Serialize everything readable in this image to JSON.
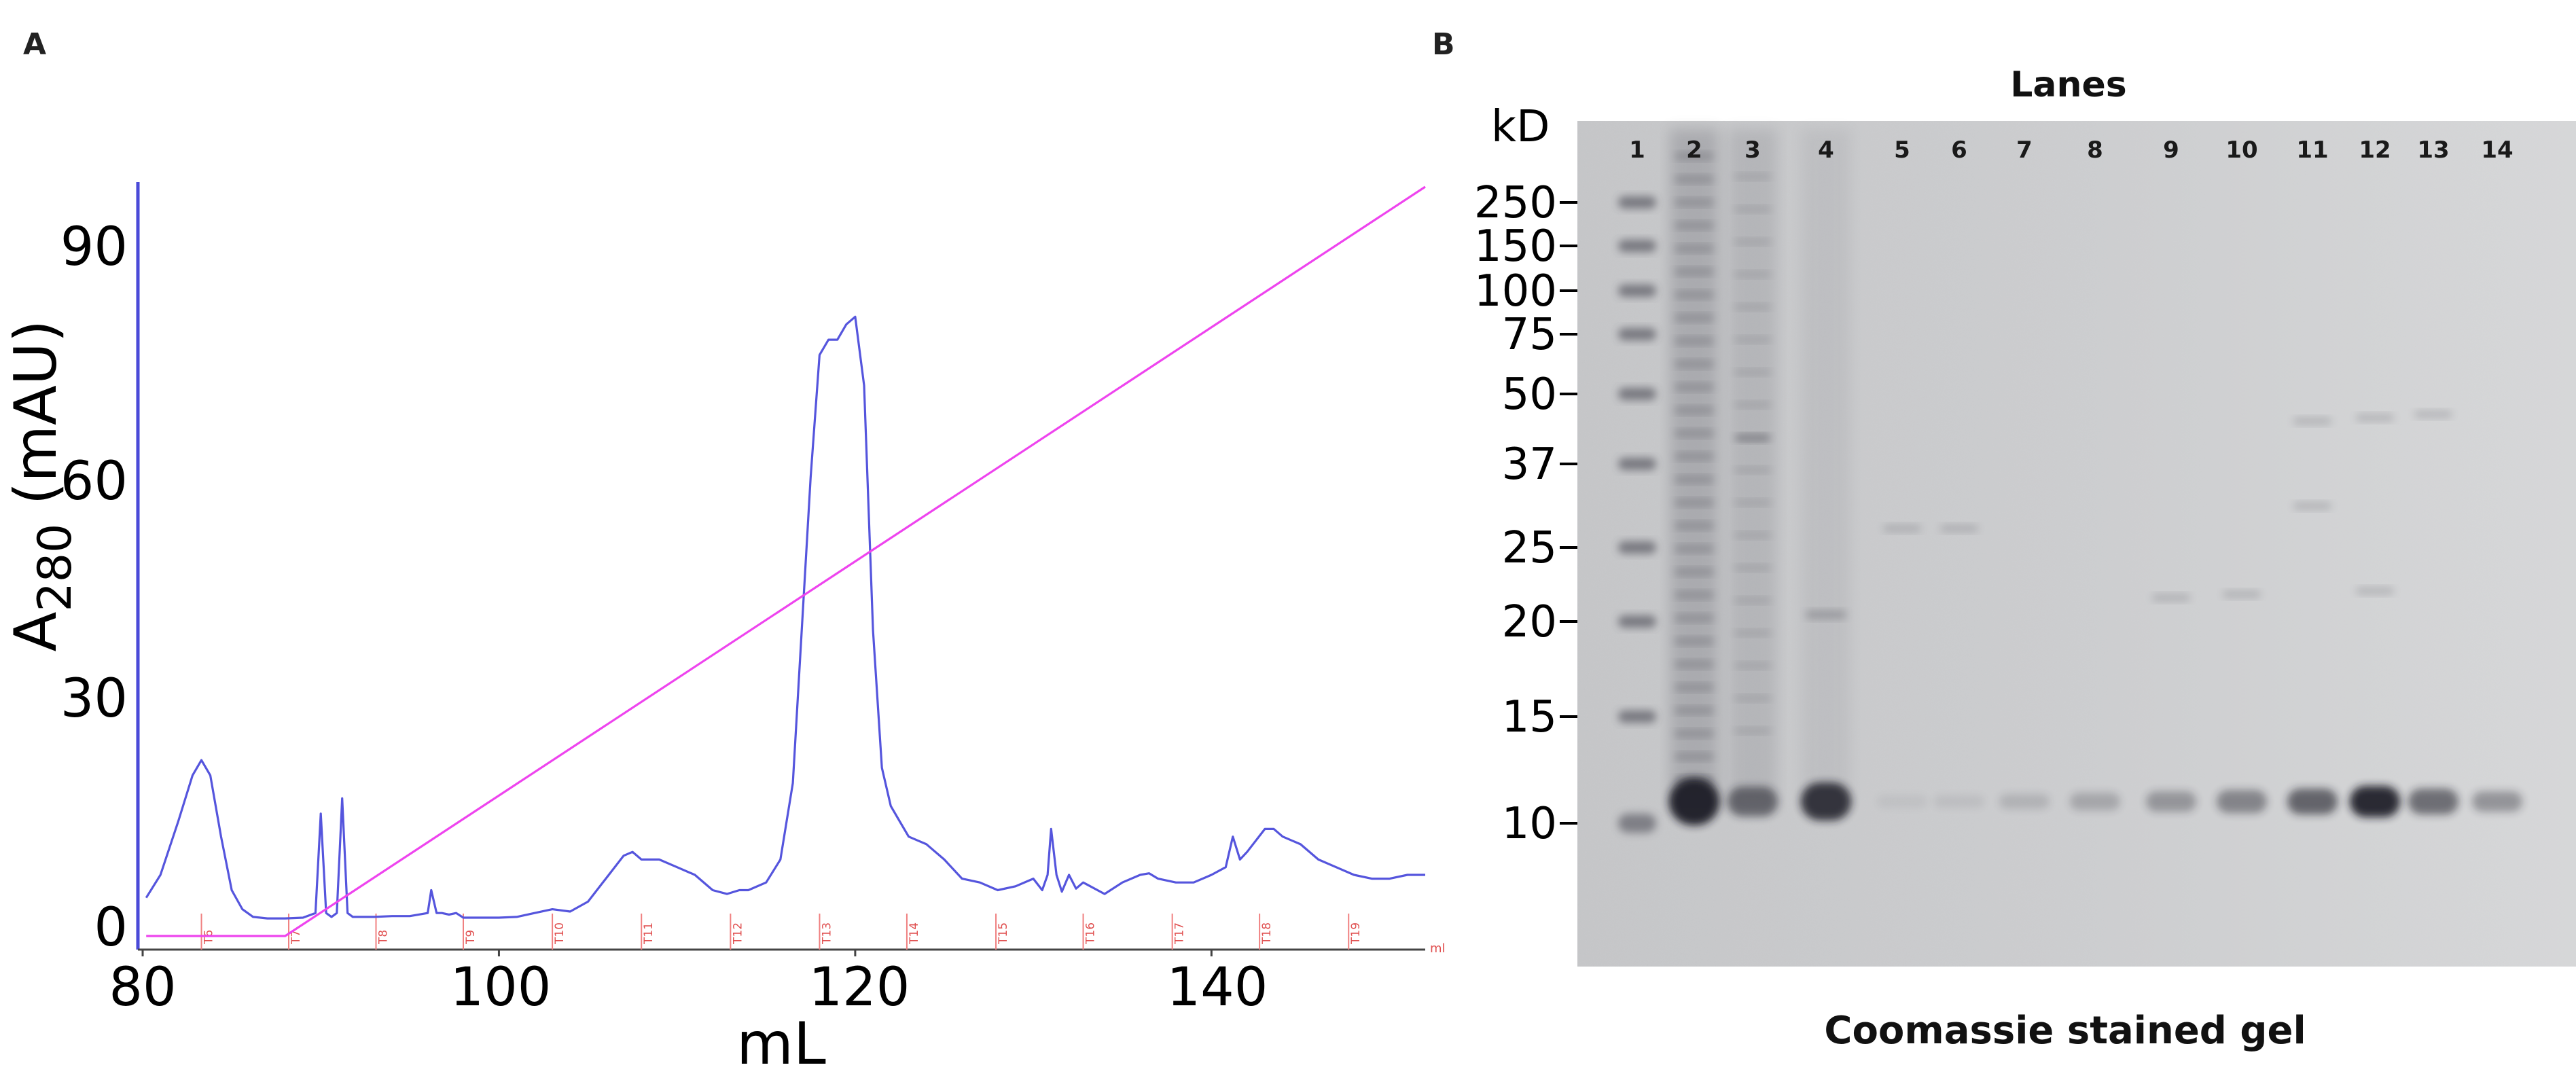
{
  "panels": {
    "a": {
      "letter": "A"
    },
    "b": {
      "letter": "B"
    }
  },
  "chart_data": [
    {
      "type": "line",
      "xlabel": "mL",
      "ylabel": "A",
      "ylabel_sub": "280",
      "ylabel_unit": " (mAU)",
      "xlim": [
        80,
        152
      ],
      "ylim": [
        0,
        98
      ],
      "xticks": [
        80,
        100,
        120,
        140
      ],
      "yticks": [
        0,
        30,
        60,
        90
      ],
      "x_unit_small": "ml",
      "fractions": [
        {
          "label": "T6",
          "x": 83.3
        },
        {
          "label": "T7",
          "x": 88.2
        },
        {
          "label": "T8",
          "x": 93.1
        },
        {
          "label": "T9",
          "x": 98.0
        },
        {
          "label": "T10",
          "x": 103.0
        },
        {
          "label": "T11",
          "x": 108.0
        },
        {
          "label": "T12",
          "x": 113.0
        },
        {
          "label": "T13",
          "x": 118.0
        },
        {
          "label": "T14",
          "x": 122.9
        },
        {
          "label": "T15",
          "x": 127.9
        },
        {
          "label": "T16",
          "x": 132.8
        },
        {
          "label": "T17",
          "x": 137.8
        },
        {
          "label": "T18",
          "x": 142.7
        },
        {
          "label": "T19",
          "x": 147.7
        }
      ],
      "series": [
        {
          "color": "#5555dd",
          "x": [
            80.2,
            81,
            82,
            82.8,
            83.3,
            83.8,
            84.4,
            85,
            85.6,
            86.2,
            87,
            88,
            89,
            89.7,
            90,
            90.3,
            90.6,
            90.9,
            91.2,
            91.5,
            91.8,
            92,
            93,
            94,
            95,
            96,
            96.2,
            96.5,
            96.8,
            97.2,
            97.6,
            98,
            99,
            100,
            101,
            102,
            103,
            104,
            105,
            106,
            107,
            107.5,
            108,
            109,
            110,
            111,
            112,
            112.8,
            113.5,
            114,
            115,
            115.8,
            116.5,
            117,
            117.5,
            118,
            118.5,
            119,
            119.5,
            120,
            120.5,
            121,
            121.5,
            122,
            122.5,
            123,
            123.5,
            124,
            124.5,
            125,
            126,
            127,
            128,
            129,
            130,
            130.5,
            130.8,
            131,
            131.3,
            131.6,
            132,
            132.4,
            132.8,
            133.2,
            134,
            135,
            136,
            136.5,
            137,
            138,
            139,
            140,
            140.8,
            141.2,
            141.6,
            142,
            143,
            143.5,
            144,
            145,
            146,
            147,
            148,
            149,
            150,
            151,
            152
          ],
          "values": [
            5,
            8,
            15,
            21,
            23,
            21,
            13,
            6,
            3.5,
            2.5,
            2.3,
            2.3,
            2.4,
            3,
            16,
            3,
            2.5,
            3,
            18,
            3,
            2.5,
            2.5,
            2.5,
            2.6,
            2.6,
            3,
            6,
            3,
            3,
            2.8,
            3,
            2.4,
            2.4,
            2.4,
            2.5,
            3,
            3.5,
            3.2,
            4.5,
            7.5,
            10.5,
            11,
            10,
            10,
            9,
            8,
            6,
            5.5,
            6,
            6,
            7,
            10,
            20,
            40,
            60,
            76,
            78,
            78,
            80,
            81,
            72,
            40,
            22,
            17,
            15,
            13,
            12.5,
            12,
            11,
            10,
            7.5,
            7,
            6,
            6.5,
            7.5,
            6,
            8,
            14,
            8,
            5.8,
            8,
            6.2,
            7,
            6.5,
            5.5,
            7,
            8,
            8.2,
            7.5,
            7,
            7,
            8,
            9,
            13,
            10,
            11,
            14,
            14,
            13,
            12,
            10,
            9,
            8,
            7.5,
            7.5,
            8,
            8
          ]
        },
        {
          "color": "#ee44ee",
          "x": [
            80.2,
            88,
            152
          ],
          "values": [
            0,
            0,
            98
          ]
        }
      ]
    },
    {
      "type": "table",
      "title": "Lanes",
      "caption": "Coomassie stained gel",
      "unit": "kD",
      "lanes": [
        "1",
        "2",
        "3",
        "4",
        "5",
        "6",
        "7",
        "8",
        "9",
        "10",
        "11",
        "12",
        "13",
        "14"
      ],
      "markers": [
        "250",
        "150",
        "100",
        "75",
        "50",
        "37",
        "25",
        "20",
        "15",
        "10"
      ]
    }
  ]
}
